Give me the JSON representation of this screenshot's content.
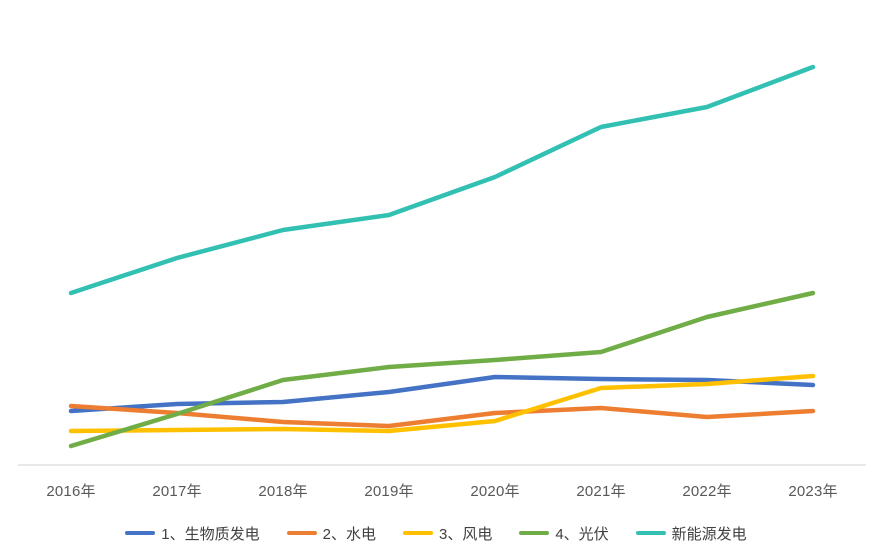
{
  "chart_data": {
    "type": "line",
    "title": "",
    "categories": [
      "2016年",
      "2017年",
      "2018年",
      "2019年",
      "2020年",
      "2021年",
      "2022年",
      "2023年"
    ],
    "series": [
      {
        "name": "1、生物质发电",
        "color": "#4472C4",
        "values": [
          54,
          61,
          63,
          73,
          88,
          86,
          85,
          80
        ]
      },
      {
        "name": "2、水电",
        "color": "#ED7D31",
        "values": [
          59,
          52,
          43,
          39,
          52,
          57,
          48,
          54
        ]
      },
      {
        "name": "3、风电",
        "color": "#FFC000",
        "values": [
          34,
          35,
          36,
          34,
          44,
          77,
          81,
          89
        ]
      },
      {
        "name": "4、光伏",
        "color": "#70AD47",
        "values": [
          19,
          51,
          85,
          98,
          105,
          113,
          148,
          172
        ]
      },
      {
        "name": "新能源发电",
        "color": "#31C0B2",
        "values": [
          172,
          207,
          235,
          250,
          288,
          338,
          358,
          398
        ]
      }
    ],
    "xlabel": "",
    "ylabel": "",
    "ylim": [
      0,
      430
    ],
    "y_axis_visible": false,
    "y_tick_labels": [],
    "gridlines": false,
    "legend_position": "bottom",
    "line_width": 4.5,
    "axis_line_color": "#D9D9D9",
    "x_label_color": "#595959",
    "legend_text_color": "#404040",
    "background_color": "#FFFFFF"
  }
}
